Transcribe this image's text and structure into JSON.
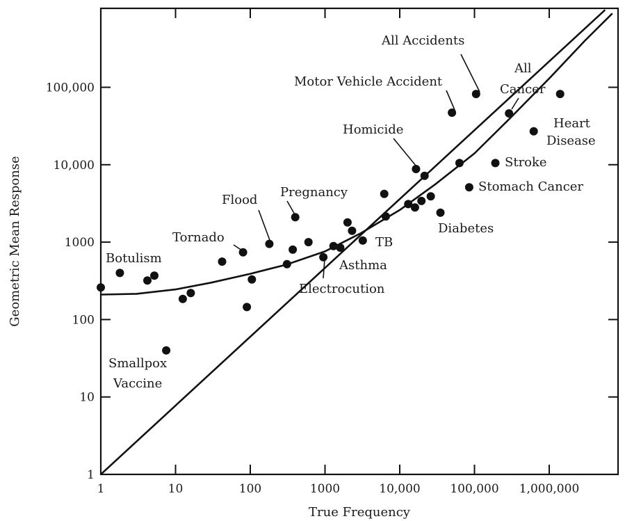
{
  "chart_data": {
    "type": "scatter",
    "title": "",
    "xlabel": "True Frequency",
    "ylabel": "Geometric Mean Response",
    "x_scale": "log",
    "y_scale": "log",
    "xlim": [
      1,
      7000000
    ],
    "ylim": [
      1,
      1000000
    ],
    "grid": false,
    "x_ticks": [
      {
        "value": 1,
        "label": "1"
      },
      {
        "value": 10,
        "label": "10"
      },
      {
        "value": 100,
        "label": "100"
      },
      {
        "value": 1000,
        "label": "1000"
      },
      {
        "value": 10000,
        "label": "10,000"
      },
      {
        "value": 100000,
        "label": "100,000"
      },
      {
        "value": 1000000,
        "label": "1,000,000"
      }
    ],
    "y_ticks": [
      {
        "value": 1,
        "label": "1"
      },
      {
        "value": 10,
        "label": "10"
      },
      {
        "value": 100,
        "label": "100"
      },
      {
        "value": 1000,
        "label": "1000"
      },
      {
        "value": 10000,
        "label": "10,000"
      },
      {
        "value": 100000,
        "label": "100,000"
      }
    ],
    "reference_lines": [
      {
        "kind": "identity",
        "points": [
          [
            1,
            1
          ],
          [
            5600000,
            1000000
          ]
        ]
      },
      {
        "kind": "best-fit curve",
        "points": [
          [
            1,
            210
          ],
          [
            3,
            215
          ],
          [
            10,
            245
          ],
          [
            30,
            300
          ],
          [
            100,
            390
          ],
          [
            300,
            510
          ],
          [
            1000,
            760
          ],
          [
            3000,
            1300
          ],
          [
            10000,
            2600
          ],
          [
            30000,
            5600
          ],
          [
            100000,
            14000
          ],
          [
            300000,
            40000
          ],
          [
            1000000,
            130000
          ],
          [
            3000000,
            400000
          ],
          [
            7000000,
            900000
          ]
        ]
      }
    ],
    "points": [
      {
        "x": 1,
        "y": 260
      },
      {
        "x": 1.8,
        "y": 400
      },
      {
        "x": 4.2,
        "y": 320
      },
      {
        "x": 5.2,
        "y": 370
      },
      {
        "x": 7.5,
        "y": 40
      },
      {
        "x": 12.5,
        "y": 185
      },
      {
        "x": 16,
        "y": 220
      },
      {
        "x": 42,
        "y": 560
      },
      {
        "x": 80,
        "y": 740
      },
      {
        "x": 90,
        "y": 145
      },
      {
        "x": 105,
        "y": 330
      },
      {
        "x": 180,
        "y": 950
      },
      {
        "x": 310,
        "y": 520
      },
      {
        "x": 370,
        "y": 800
      },
      {
        "x": 400,
        "y": 2100
      },
      {
        "x": 600,
        "y": 1000
      },
      {
        "x": 950,
        "y": 640
      },
      {
        "x": 1300,
        "y": 890
      },
      {
        "x": 1600,
        "y": 850
      },
      {
        "x": 2000,
        "y": 1800
      },
      {
        "x": 2300,
        "y": 1400
      },
      {
        "x": 3200,
        "y": 1050
      },
      {
        "x": 6200,
        "y": 4200
      },
      {
        "x": 6500,
        "y": 2150
      },
      {
        "x": 13000,
        "y": 3100
      },
      {
        "x": 16000,
        "y": 2800
      },
      {
        "x": 16500,
        "y": 8800
      },
      {
        "x": 19500,
        "y": 3400
      },
      {
        "x": 21500,
        "y": 7200
      },
      {
        "x": 26000,
        "y": 3900
      },
      {
        "x": 35000,
        "y": 2400
      },
      {
        "x": 50000,
        "y": 47000
      },
      {
        "x": 63000,
        "y": 10500
      },
      {
        "x": 85000,
        "y": 5100
      },
      {
        "x": 105000,
        "y": 82000
      },
      {
        "x": 190000,
        "y": 10500
      },
      {
        "x": 290000,
        "y": 46000
      },
      {
        "x": 620000,
        "y": 27000
      },
      {
        "x": 1400000,
        "y": 82000
      }
    ],
    "annotations": [
      {
        "text": "All Accidents"
      },
      {
        "text": "Motor Vehicle Accident"
      },
      {
        "text": "All"
      },
      {
        "text": "Cancer"
      },
      {
        "text": "Heart"
      },
      {
        "text": "Disease"
      },
      {
        "text": "Homicide"
      },
      {
        "text": "Stroke"
      },
      {
        "text": "Stomach Cancer"
      },
      {
        "text": "Diabetes"
      },
      {
        "text": "Pregnancy"
      },
      {
        "text": "Flood"
      },
      {
        "text": "Tornado"
      },
      {
        "text": "Botulism"
      },
      {
        "text": "TB"
      },
      {
        "text": "Asthma"
      },
      {
        "text": "Electrocution"
      },
      {
        "text": "Smallpox"
      },
      {
        "text": "Vaccine"
      }
    ]
  }
}
